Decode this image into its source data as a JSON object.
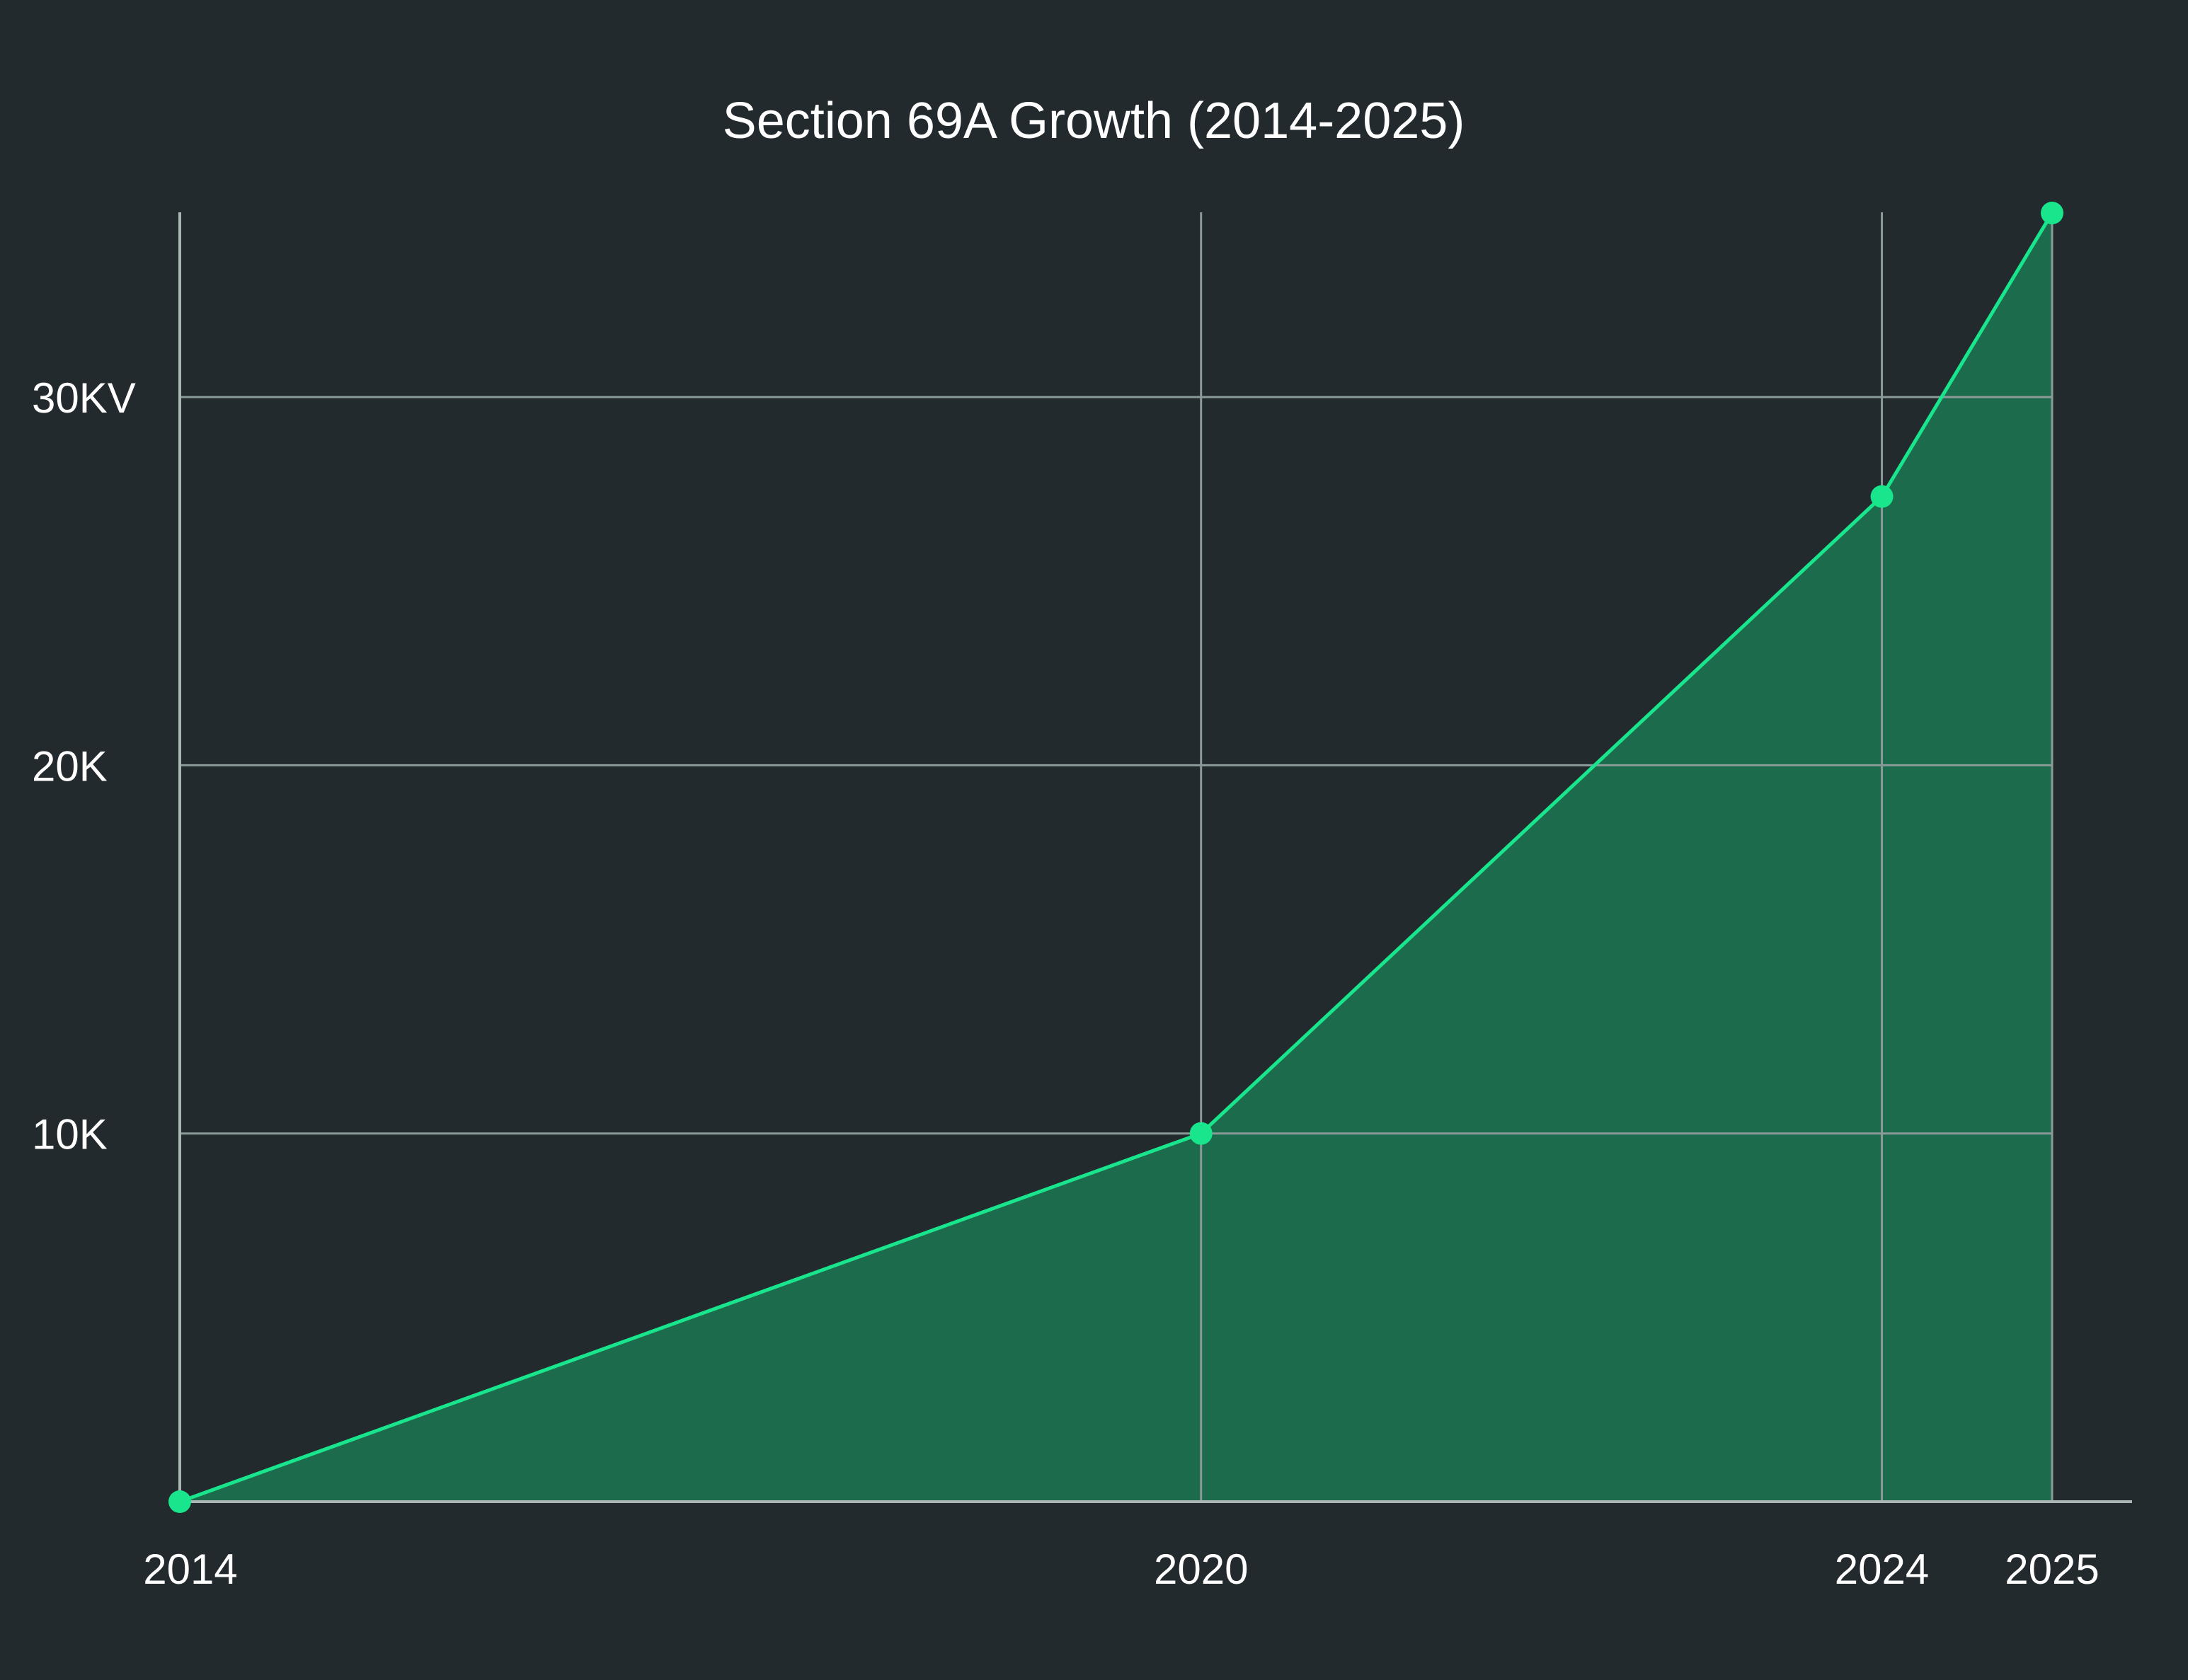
{
  "chart_data": {
    "type": "area",
    "title": "Section 69A Growth (2014-2025)",
    "xlabel": "",
    "ylabel": "",
    "x": [
      2014,
      2020,
      2024,
      2025
    ],
    "series": [
      {
        "values": [
          0,
          10000,
          27300,
          35000
        ]
      }
    ],
    "x_ticks": [
      {
        "value": 2014,
        "label": "2014"
      },
      {
        "value": 2020,
        "label": "2020"
      },
      {
        "value": 2024,
        "label": "2024"
      },
      {
        "value": 2025,
        "label": "2025"
      }
    ],
    "y_ticks": [
      {
        "value": 10000,
        "label": "10K"
      },
      {
        "value": 20000,
        "label": "20K"
      },
      {
        "value": 30000,
        "label": "30KV"
      }
    ],
    "xlim": [
      2014,
      2025
    ],
    "ylim": [
      0,
      35000
    ],
    "grid": true,
    "legend": "none"
  },
  "colors": {
    "background": "#232a2e",
    "grid": "#8a9a98",
    "axis": "#a9b6b4",
    "line": "#19e58c",
    "marker": "#19e58c",
    "area_fill": "#1b6b4c",
    "text": "#ffffff"
  }
}
